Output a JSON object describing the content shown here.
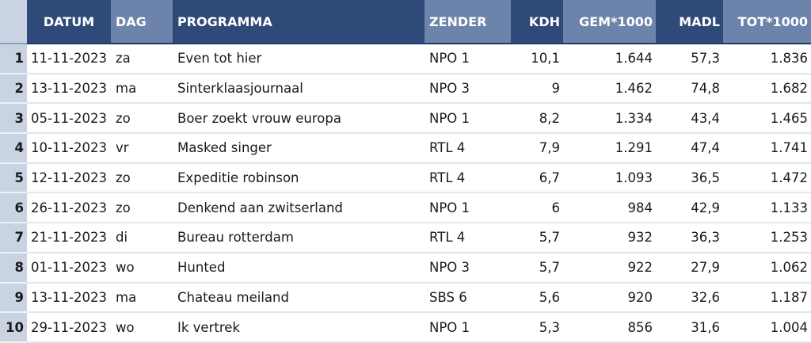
{
  "table": {
    "headers": {
      "index": "",
      "datum": "DATUM",
      "dag": "DAG",
      "programma": "PROGRAMMA",
      "zender": "ZENDER",
      "kdh": "KDH",
      "gem": "GEM*1000",
      "madl": "MADL",
      "tot": "TOT*1000"
    },
    "rows": [
      {
        "idx": "1",
        "datum": "11-11-2023",
        "dag": "za",
        "programma": "Even tot hier",
        "zender": "NPO 1",
        "kdh": "10,1",
        "gem": "1.644",
        "madl": "57,3",
        "tot": "1.836"
      },
      {
        "idx": "2",
        "datum": "13-11-2023",
        "dag": "ma",
        "programma": "Sinterklaasjournaal",
        "zender": "NPO 3",
        "kdh": "9",
        "gem": "1.462",
        "madl": "74,8",
        "tot": "1.682"
      },
      {
        "idx": "3",
        "datum": "05-11-2023",
        "dag": "zo",
        "programma": "Boer zoekt vrouw europa",
        "zender": "NPO 1",
        "kdh": "8,2",
        "gem": "1.334",
        "madl": "43,4",
        "tot": "1.465"
      },
      {
        "idx": "4",
        "datum": "10-11-2023",
        "dag": "vr",
        "programma": "Masked singer",
        "zender": "RTL 4",
        "kdh": "7,9",
        "gem": "1.291",
        "madl": "47,4",
        "tot": "1.741"
      },
      {
        "idx": "5",
        "datum": "12-11-2023",
        "dag": "zo",
        "programma": "Expeditie robinson",
        "zender": "RTL 4",
        "kdh": "6,7",
        "gem": "1.093",
        "madl": "36,5",
        "tot": "1.472"
      },
      {
        "idx": "6",
        "datum": "26-11-2023",
        "dag": "zo",
        "programma": "Denkend aan zwitserland",
        "zender": "NPO 1",
        "kdh": "6",
        "gem": "984",
        "madl": "42,9",
        "tot": "1.133"
      },
      {
        "idx": "7",
        "datum": "21-11-2023",
        "dag": "di",
        "programma": "Bureau rotterdam",
        "zender": "RTL 4",
        "kdh": "5,7",
        "gem": "932",
        "madl": "36,3",
        "tot": "1.253"
      },
      {
        "idx": "8",
        "datum": "01-11-2023",
        "dag": "wo",
        "programma": "Hunted",
        "zender": "NPO 3",
        "kdh": "5,7",
        "gem": "922",
        "madl": "27,9",
        "tot": "1.062"
      },
      {
        "idx": "9",
        "datum": "13-11-2023",
        "dag": "ma",
        "programma": "Chateau meiland",
        "zender": "SBS 6",
        "kdh": "5,6",
        "gem": "920",
        "madl": "32,6",
        "tot": "1.187"
      },
      {
        "idx": "10",
        "datum": "29-11-2023",
        "dag": "wo",
        "programma": "Ik vertrek",
        "zender": "NPO 1",
        "kdh": "5,3",
        "gem": "856",
        "madl": "31,6",
        "tot": "1.004"
      }
    ]
  }
}
